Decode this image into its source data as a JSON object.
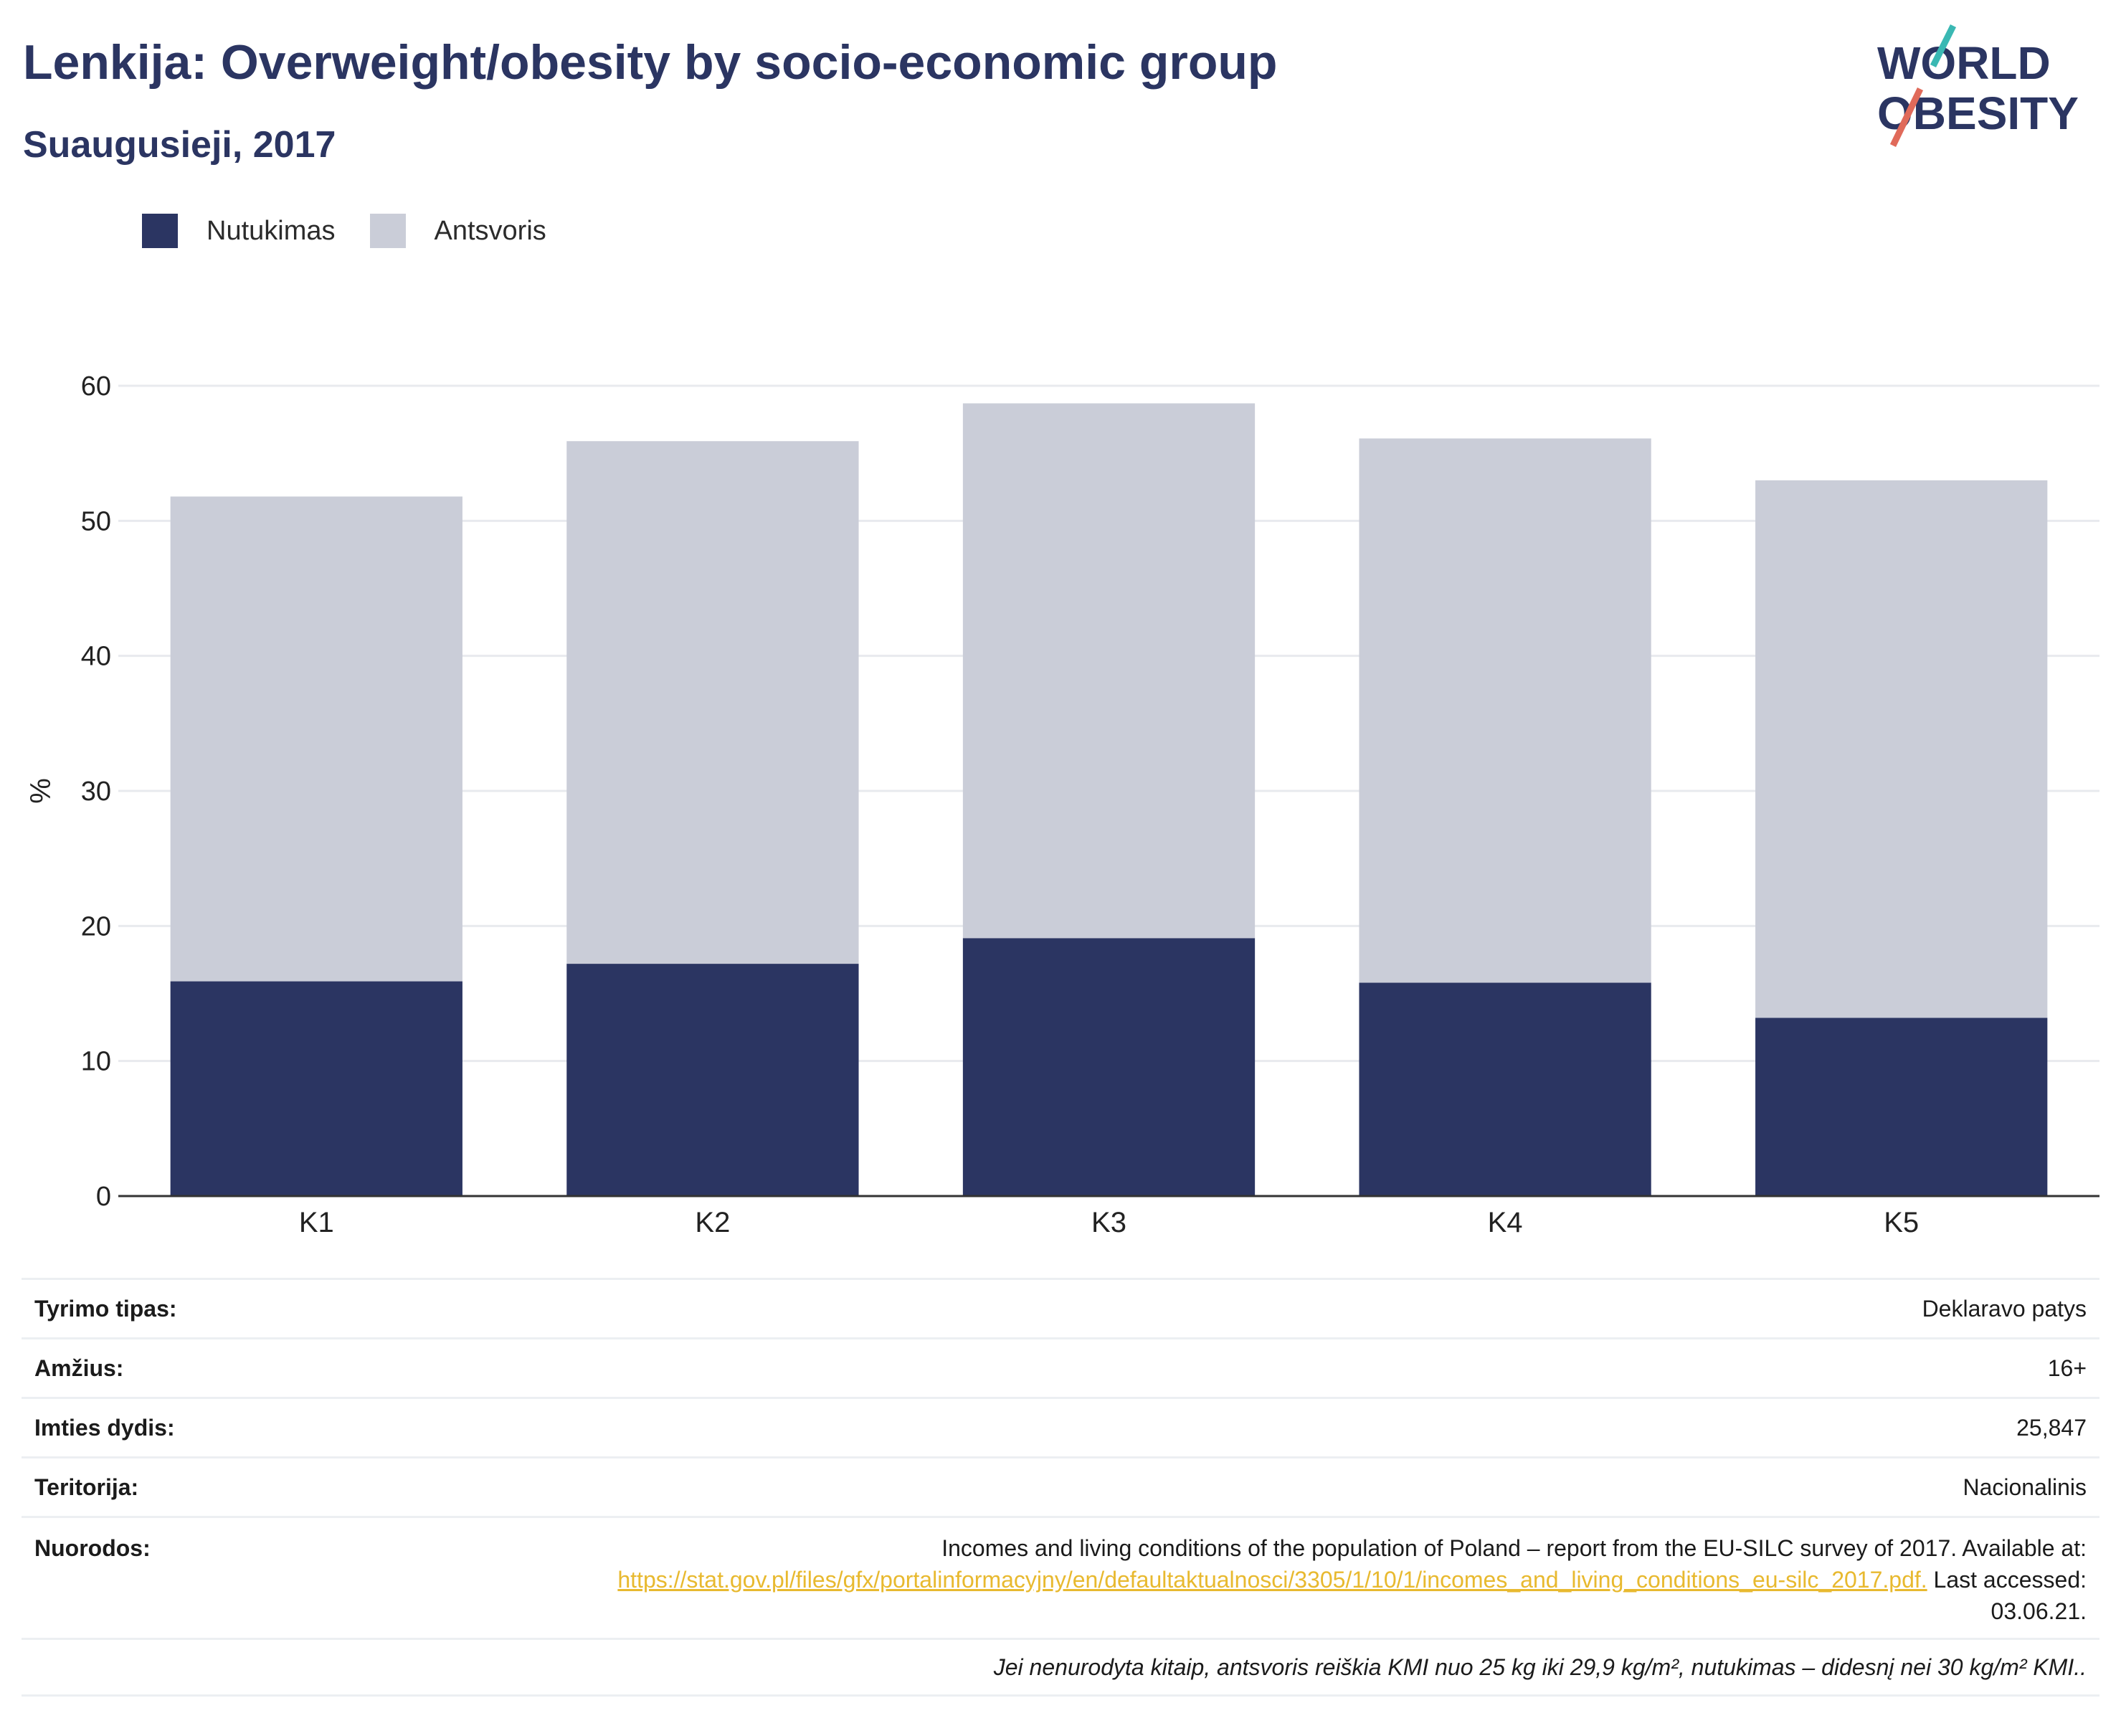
{
  "header": {
    "title": "Lenkija: Overweight/obesity by socio-economic group",
    "subtitle": "Suaugusieji, 2017"
  },
  "logo": {
    "line1": "WORLD",
    "line2": "OBESITY",
    "accent_teal": "#3ab8b3",
    "accent_red": "#e06a5a"
  },
  "colors": {
    "obesity": "#2b3562",
    "overweight": "#cacdd8",
    "grid": "#e8eaee",
    "axis": "#333333"
  },
  "legend": {
    "items": [
      {
        "label": "Nutukimas",
        "color": "#2b3562"
      },
      {
        "label": "Antsvoris",
        "color": "#cacdd8"
      }
    ]
  },
  "chart_data": {
    "type": "bar",
    "stacked": true,
    "categories": [
      "K1",
      "K2",
      "K3",
      "K4",
      "K5"
    ],
    "series": [
      {
        "name": "Nutukimas",
        "values": [
          15.9,
          17.2,
          19.1,
          15.8,
          13.2
        ]
      },
      {
        "name": "Antsvoris",
        "values": [
          35.9,
          38.7,
          39.6,
          40.3,
          39.8
        ]
      }
    ],
    "ylabel": "%",
    "xlabel": "",
    "ylim": [
      0,
      60
    ],
    "yticks": [
      0,
      10,
      20,
      30,
      40,
      50,
      60
    ],
    "grid": true
  },
  "info": {
    "rows": [
      {
        "key": "Tyrimo tipas:",
        "value": "Deklaravo patys"
      },
      {
        "key": "Amžius:",
        "value": "16+"
      },
      {
        "key": "Imties dydis:",
        "value": "25,847"
      },
      {
        "key": "Teritorija:",
        "value": "Nacionalinis"
      }
    ],
    "reference": {
      "key": "Nuorodos:",
      "text_before": "Incomes and living conditions of the population of Poland – report from the EU-SILC survey of 2017. Available at:",
      "link": "https://stat.gov.pl/files/gfx/portalinformacyjny/en/defaultaktualnosci/3305/1/10/1/incomes_and_living_conditions_eu-silc_2017.pdf.",
      "text_after": "Last accessed: 03.06.21."
    },
    "note": "Jei nenurodyta kitaip, antsvoris reiškia KMI nuo 25 kg iki 29,9 kg/m², nutukimas – didesnį nei 30 kg/m² KMI.."
  }
}
